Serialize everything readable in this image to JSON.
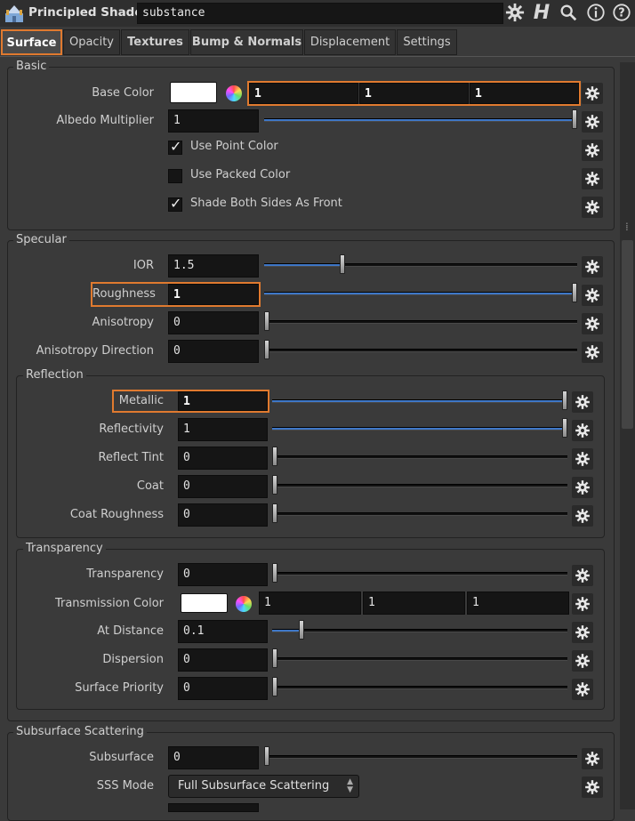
{
  "header": {
    "node_type": "Principled Shader",
    "node_name": "substance",
    "icons": [
      "houdini-node-icon",
      "gear-icon",
      "houdini-h-icon",
      "search-icon",
      "info-icon",
      "help-icon"
    ]
  },
  "tabs": [
    {
      "label": "Surface",
      "active": true
    },
    {
      "label": "Opacity"
    },
    {
      "label": "Textures"
    },
    {
      "label": "Bump & Normals"
    },
    {
      "label": "Displacement"
    },
    {
      "label": "Settings"
    }
  ],
  "basic": {
    "title": "Basic",
    "base_color": {
      "label": "Base Color",
      "r": "1",
      "g": "1",
      "b": "1",
      "swatch": "#ffffff"
    },
    "albedo": {
      "label": "Albedo Multiplier",
      "value": "1",
      "fraction": 1.0
    },
    "use_point_color": {
      "label": "Use Point Color",
      "checked": true
    },
    "use_packed_color": {
      "label": "Use Packed Color",
      "checked": false
    },
    "shade_both_sides": {
      "label": "Shade Both Sides As Front",
      "checked": true
    }
  },
  "specular": {
    "title": "Specular",
    "ior": {
      "label": "IOR",
      "value": "1.5",
      "fraction": 0.25
    },
    "roughness": {
      "label": "Roughness",
      "value": "1",
      "fraction": 1.0
    },
    "anisotropy": {
      "label": "Anisotropy",
      "value": "0",
      "fraction": 0
    },
    "anisotropy_direction": {
      "label": "Anisotropy Direction",
      "value": "0",
      "fraction": 0
    },
    "reflection": {
      "title": "Reflection",
      "metallic": {
        "label": "Metallic",
        "value": "1",
        "fraction": 1.0
      },
      "reflectivity": {
        "label": "Reflectivity",
        "value": "1",
        "fraction": 1.0
      },
      "reflect_tint": {
        "label": "Reflect Tint",
        "value": "0",
        "fraction": 0
      },
      "coat": {
        "label": "Coat",
        "value": "0",
        "fraction": 0
      },
      "coat_roughness": {
        "label": "Coat Roughness",
        "value": "0",
        "fraction": 0
      }
    },
    "transparency_group": {
      "title": "Transparency",
      "transparency": {
        "label": "Transparency",
        "value": "0",
        "fraction": 0
      },
      "transmission_color": {
        "label": "Transmission Color",
        "r": "1",
        "g": "1",
        "b": "1",
        "swatch": "#ffffff"
      },
      "at_distance": {
        "label": "At Distance",
        "value": "0.1",
        "fraction": 0.1
      },
      "dispersion": {
        "label": "Dispersion",
        "value": "0",
        "fraction": 0
      },
      "surface_priority": {
        "label": "Surface Priority",
        "value": "0",
        "fraction": 0
      }
    }
  },
  "sss": {
    "title": "Subsurface Scattering",
    "subsurface": {
      "label": "Subsurface",
      "value": "0",
      "fraction": 0
    },
    "sss_mode": {
      "label": "SSS Mode",
      "value": "Full Subsurface Scattering"
    }
  },
  "colors": {
    "accent": "#e07a2f",
    "slider_fill": "#3e77c7"
  }
}
